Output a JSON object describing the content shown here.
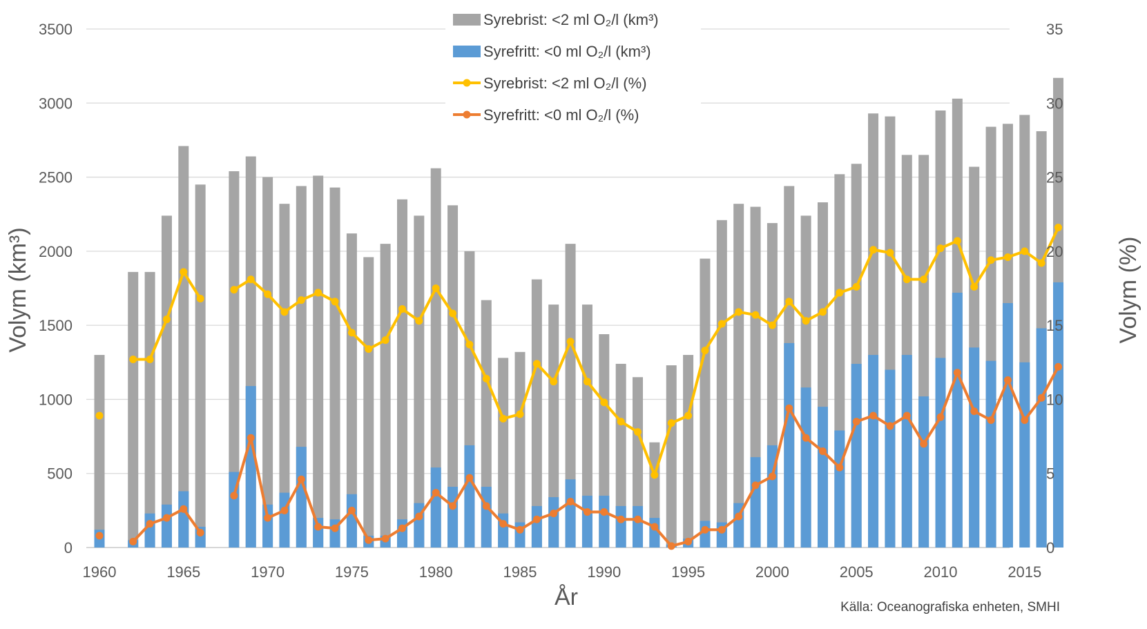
{
  "chart_data": {
    "type": "bar+line",
    "xlabel": "År",
    "ylabel_left": "Volym (km³)",
    "ylabel_right": "Volym (%)",
    "ylim_left": [
      0,
      3500
    ],
    "ylim_right": [
      0,
      35
    ],
    "yticks_left": [
      "0",
      "500",
      "1000",
      "1500",
      "2000",
      "2500",
      "3000",
      "3500"
    ],
    "yticks_right": [
      "0",
      "5",
      "10",
      "15",
      "20",
      "25",
      "30",
      "35"
    ],
    "xticks": [
      "1960",
      "1965",
      "1970",
      "1975",
      "1980",
      "1985",
      "1990",
      "1995",
      "2000",
      "2005",
      "2010",
      "2015"
    ],
    "source": "Källa: Oceanografiska enheten, SMHI",
    "legend_position": "top-center",
    "colors": {
      "syrebrist_bar": "#a5a5a5",
      "syrefritt_bar": "#5b9bd5",
      "syrebrist_line": "#ffc000",
      "syrefritt_line": "#ed7d31",
      "grid": "#d9d9d9"
    },
    "years": [
      1960,
      1961,
      1962,
      1963,
      1964,
      1965,
      1966,
      1967,
      1968,
      1969,
      1970,
      1971,
      1972,
      1973,
      1974,
      1975,
      1976,
      1977,
      1978,
      1979,
      1980,
      1981,
      1982,
      1983,
      1984,
      1985,
      1986,
      1987,
      1988,
      1989,
      1990,
      1991,
      1992,
      1993,
      1994,
      1995,
      1996,
      1997,
      1998,
      1999,
      2000,
      2001,
      2002,
      2003,
      2004,
      2005,
      2006,
      2007,
      2008,
      2009,
      2010,
      2011,
      2012,
      2013,
      2014,
      2015,
      2016,
      2017
    ],
    "series": [
      {
        "name": "Syrebrist: <2 ml O₂/l (km³)",
        "kind": "bar",
        "values": [
          1300,
          null,
          1860,
          1860,
          2240,
          2710,
          2450,
          null,
          2540,
          2640,
          2500,
          2320,
          2440,
          2510,
          2430,
          2120,
          1960,
          2050,
          2350,
          2240,
          2560,
          2310,
          2000,
          1670,
          1280,
          1320,
          1810,
          1640,
          2050,
          1640,
          1440,
          1240,
          1150,
          710,
          1230,
          1300,
          1950,
          2210,
          2320,
          2300,
          2190,
          2440,
          2240,
          2330,
          2520,
          2590,
          2930,
          2910,
          2650,
          2650,
          2950,
          3030,
          2570,
          2840,
          2860,
          2920,
          2810,
          3170
        ]
      },
      {
        "name": "Syrefritt: <0 ml O₂/l (km³)",
        "kind": "bar",
        "values": [
          120,
          null,
          50,
          230,
          290,
          380,
          140,
          null,
          510,
          1090,
          290,
          370,
          680,
          200,
          190,
          360,
          80,
          80,
          190,
          300,
          540,
          410,
          690,
          410,
          230,
          170,
          280,
          340,
          460,
          350,
          350,
          280,
          280,
          200,
          20,
          60,
          180,
          170,
          300,
          610,
          690,
          1380,
          1080,
          950,
          790,
          1240,
          1300,
          1200,
          1300,
          1020,
          1280,
          1720,
          1350,
          1260,
          1650,
          1250,
          1480,
          1790
        ]
      },
      {
        "name": "Syrebrist: <2 ml O₂/l (%)",
        "kind": "line",
        "values": [
          8.9,
          null,
          12.7,
          12.7,
          15.4,
          18.6,
          16.8,
          null,
          17.4,
          18.1,
          17.1,
          15.9,
          16.7,
          17.2,
          16.6,
          14.5,
          13.4,
          14.0,
          16.1,
          15.3,
          17.5,
          15.8,
          13.7,
          11.4,
          8.7,
          9.0,
          12.4,
          11.2,
          13.9,
          11.2,
          9.8,
          8.5,
          7.8,
          4.9,
          8.4,
          8.9,
          13.3,
          15.1,
          15.9,
          15.7,
          15.0,
          16.6,
          15.3,
          15.9,
          17.2,
          17.6,
          20.1,
          19.9,
          18.1,
          18.1,
          20.2,
          20.7,
          17.6,
          19.4,
          19.6,
          20.0,
          19.2,
          21.6
        ]
      },
      {
        "name": "Syrefritt: <0 ml O₂/l (%)",
        "kind": "line",
        "values": [
          0.8,
          null,
          0.4,
          1.6,
          2.0,
          2.6,
          1.0,
          null,
          3.5,
          7.4,
          2.0,
          2.5,
          4.6,
          1.4,
          1.3,
          2.5,
          0.5,
          0.6,
          1.3,
          2.1,
          3.7,
          2.8,
          4.7,
          2.8,
          1.6,
          1.2,
          1.9,
          2.3,
          3.1,
          2.4,
          2.4,
          1.9,
          1.9,
          1.4,
          0.1,
          0.4,
          1.2,
          1.2,
          2.1,
          4.2,
          4.8,
          9.4,
          7.4,
          6.5,
          5.4,
          8.5,
          8.9,
          8.2,
          8.9,
          7.0,
          8.8,
          11.8,
          9.2,
          8.6,
          11.3,
          8.6,
          10.1,
          12.2
        ]
      }
    ]
  }
}
